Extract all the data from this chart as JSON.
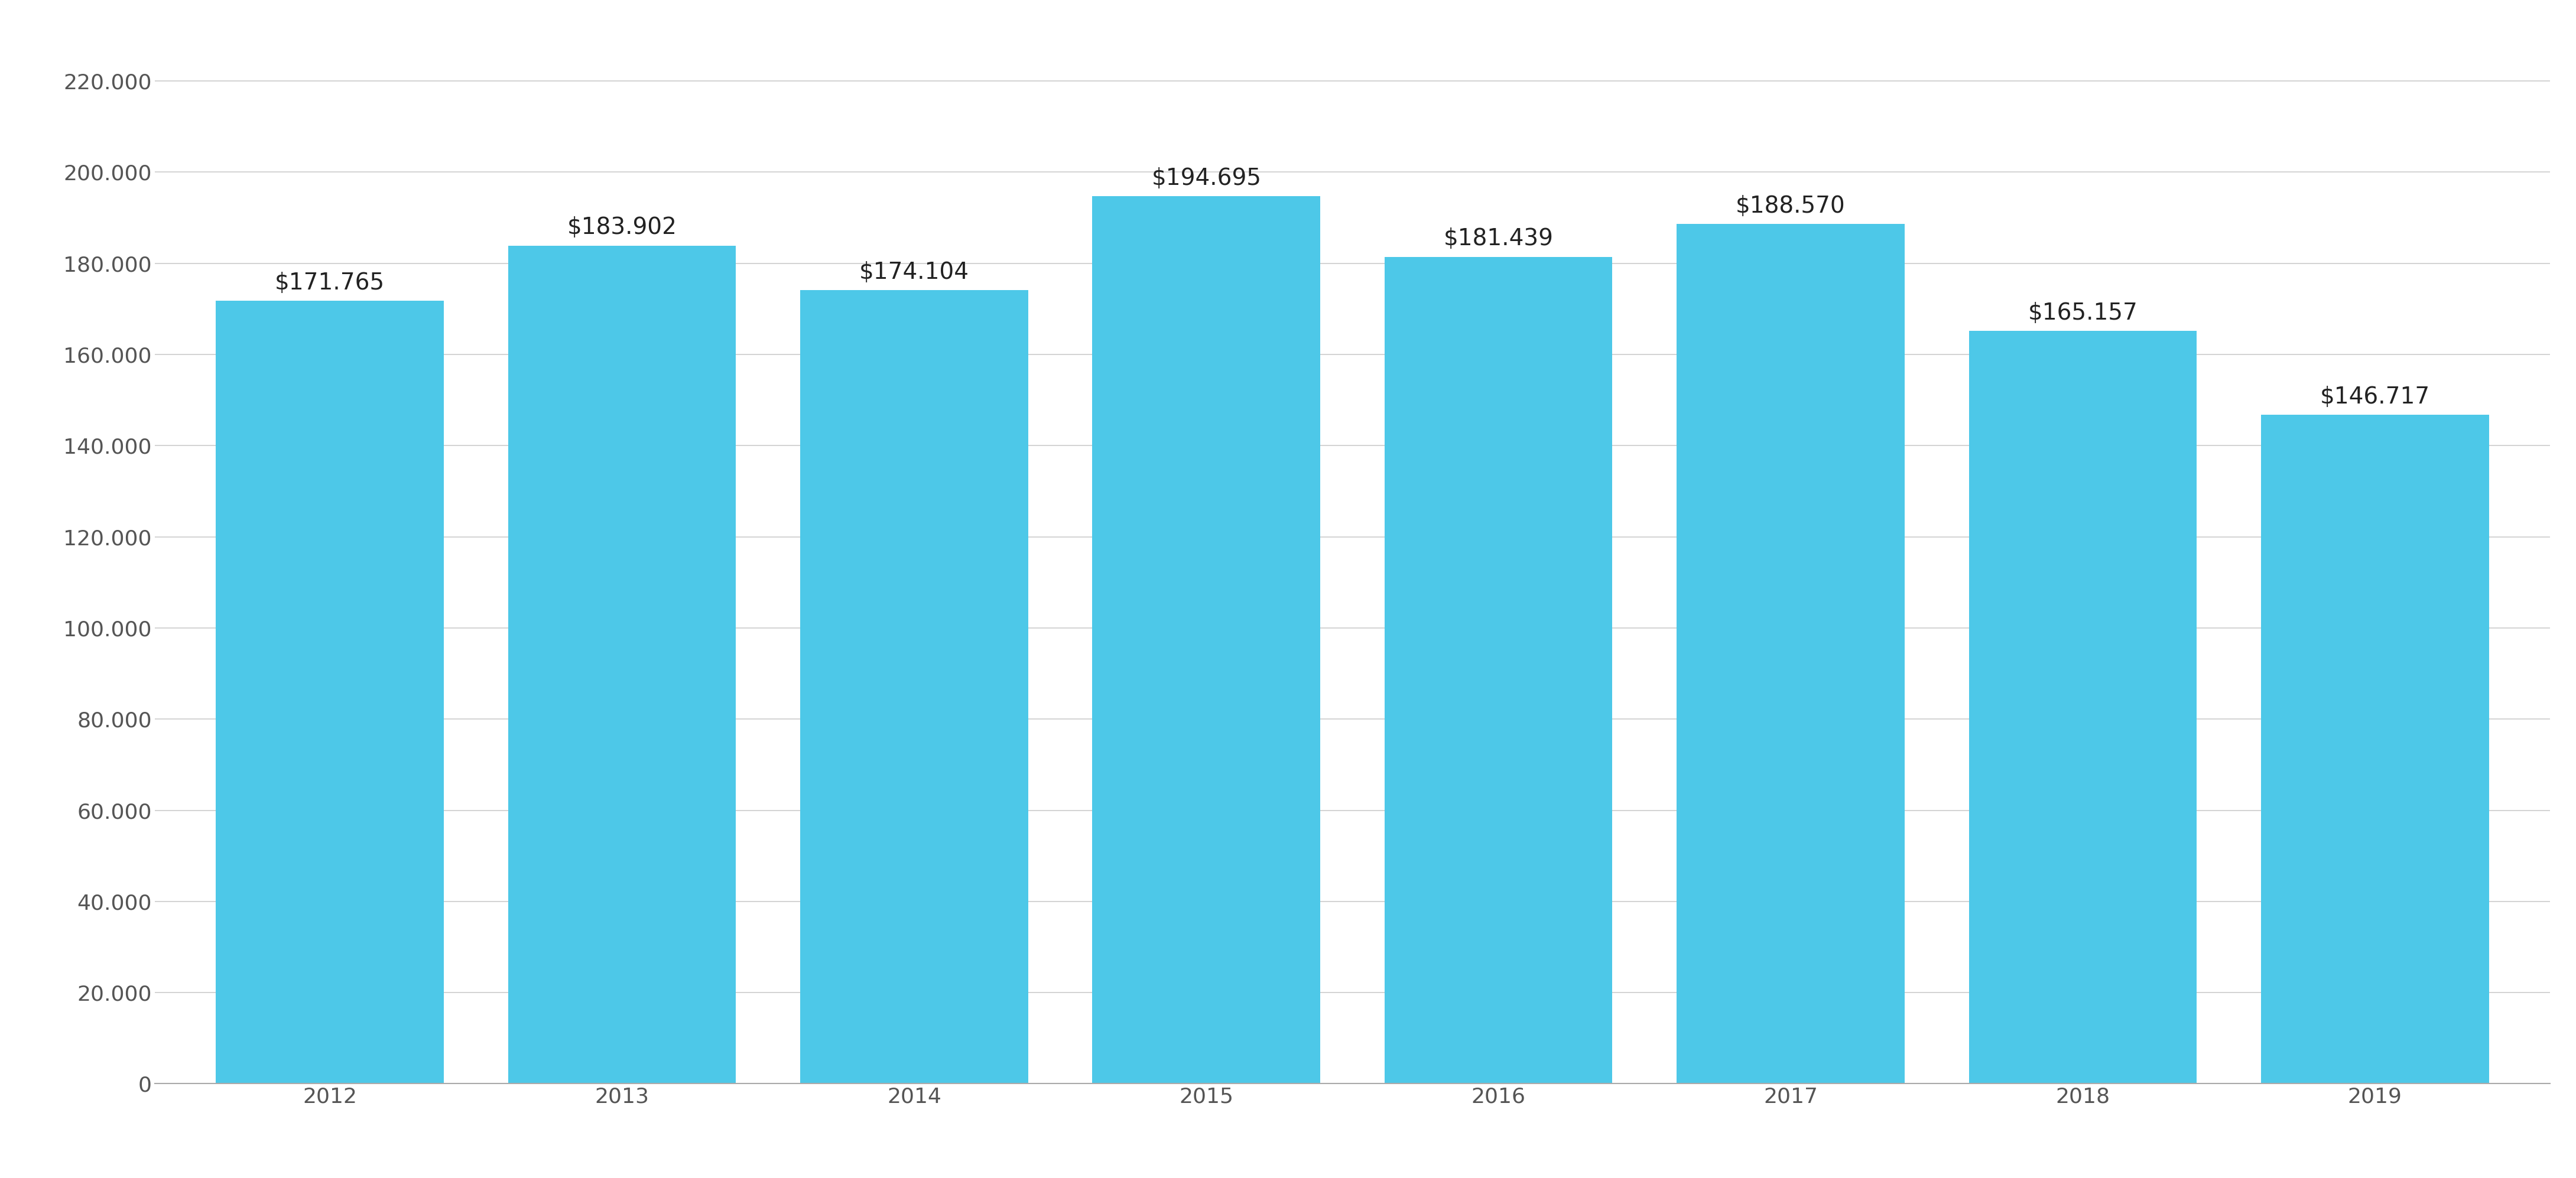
{
  "years": [
    "2012",
    "2013",
    "2014",
    "2015",
    "2016",
    "2017",
    "2018",
    "2019"
  ],
  "values": [
    171765,
    183902,
    174104,
    194695,
    181439,
    188570,
    165157,
    146717
  ],
  "labels": [
    "$171.765",
    "$183.902",
    "$174.104",
    "$194.695",
    "$181.439",
    "$188.570",
    "$165.157",
    "$146.717"
  ],
  "bar_color": "#4DC8E8",
  "background_color": "#FFFFFF",
  "ylim": [
    0,
    230000
  ],
  "yticks": [
    0,
    20000,
    40000,
    60000,
    80000,
    100000,
    120000,
    140000,
    160000,
    180000,
    200000,
    220000
  ],
  "ytick_labels": [
    "0",
    "20.000",
    "40.000",
    "60.000",
    "80.000",
    "100.000",
    "120.000",
    "140.000",
    "160.000",
    "180.000",
    "200.000",
    "220.000"
  ],
  "grid_color": "#CCCCCC",
  "label_fontsize": 28,
  "tick_fontsize": 26,
  "bar_width": 0.78
}
